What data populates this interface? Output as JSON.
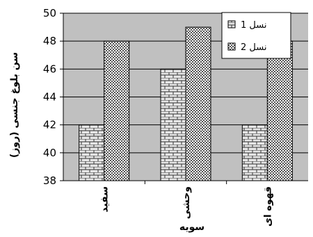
{
  "chart_data": {
    "type": "bar",
    "title": "",
    "xlabel": "سویه",
    "ylabel": "سن بلوغ جنسی (روز)",
    "categories": [
      "سفید",
      "وحشی",
      "قهوه ای"
    ],
    "series": [
      {
        "name": "نسل 1",
        "values": [
          42,
          46,
          42
        ]
      },
      {
        "name": "نسل 2",
        "values": [
          48,
          49,
          48
        ]
      }
    ],
    "ylim": [
      38,
      50
    ],
    "yticks": [
      38,
      40,
      42,
      44,
      46,
      48,
      50
    ],
    "grid": true,
    "legend": "top-right",
    "colors": {
      "plot_background": "#c0c0c0",
      "gridline": "#000000",
      "bar_edge": "#000000",
      "series1_pattern": "brick",
      "series2_pattern": "checker"
    }
  }
}
